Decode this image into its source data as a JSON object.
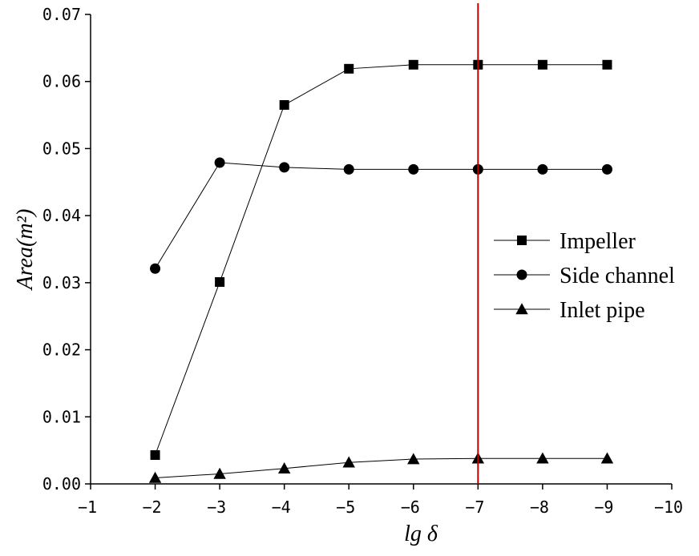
{
  "chart_data": {
    "type": "line",
    "xlabel": "lg δ",
    "ylabel": "Area(m²)",
    "xlim": [
      -1,
      -10
    ],
    "ylim": [
      0,
      0.07
    ],
    "xticks": [
      -1,
      -2,
      -3,
      -4,
      -5,
      -6,
      -7,
      -8,
      -9,
      -10
    ],
    "yticks": [
      0.0,
      0.01,
      0.02,
      0.03,
      0.04,
      0.05,
      0.06,
      0.07
    ],
    "xtick_labels": [
      "−1",
      "−2",
      "−3",
      "−4",
      "−5",
      "−6",
      "−7",
      "−8",
      "−9",
      "−10"
    ],
    "ytick_labels": [
      "0.00",
      "0.01",
      "0.02",
      "0.03",
      "0.04",
      "0.05",
      "0.06",
      "0.07"
    ],
    "x": [
      -2,
      -3,
      -4,
      -5,
      -6,
      -7,
      -8,
      -9
    ],
    "series": [
      {
        "name": "Impeller",
        "marker": "square",
        "values": [
          0.0043,
          0.0301,
          0.0565,
          0.0619,
          0.0625,
          0.0625,
          0.0625,
          0.0625
        ]
      },
      {
        "name": "Side channel",
        "marker": "circle",
        "values": [
          0.0321,
          0.0479,
          0.0472,
          0.0469,
          0.0469,
          0.0469,
          0.0469,
          0.0469
        ]
      },
      {
        "name": "Inlet pipe",
        "marker": "triangle",
        "values": [
          0.0009,
          0.0015,
          0.0023,
          0.0032,
          0.0037,
          0.0038,
          0.0038,
          0.0038
        ]
      }
    ],
    "reference_line": {
      "axis": "x",
      "value": -7,
      "color": "#c00000"
    },
    "grid": false,
    "legend_position": "right"
  }
}
